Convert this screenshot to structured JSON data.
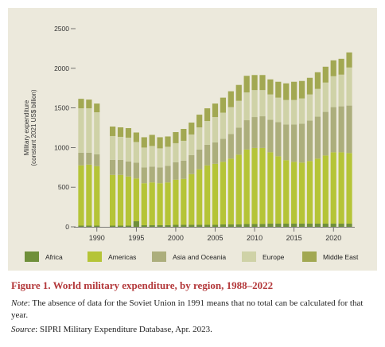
{
  "figure": {
    "label": "Figure 1.",
    "title": "World military expenditure, by region, 1988–2022",
    "note_lead": "Note",
    "note_text": ": The absence of data for the Soviet Union in 1991 means that no total can be calculated for that year.",
    "source_lead": "Source",
    "source_text": ": SIPRI Military Expenditure Database, Apr. 2023."
  },
  "chart_data": {
    "type": "bar",
    "stacked": true,
    "ylabel": [
      "Military expenditure",
      "(constant 2021 US$ billion)"
    ],
    "xlabel": "",
    "ylim": [
      0,
      2500
    ],
    "yticks": [
      0,
      500,
      1000,
      1500,
      2000,
      2500
    ],
    "xticks": [
      1990,
      1995,
      2000,
      2005,
      2010,
      2015,
      2020
    ],
    "grid": false,
    "legend": "bottom",
    "colors": {
      "Africa": "#6f8f3a",
      "Americas": "#b5c437",
      "Asia and Oceania": "#acae7c",
      "Europe": "#cfd2a7",
      "Middle East": "#a2a852"
    },
    "series_order": [
      "Africa",
      "Americas",
      "Asia and Oceania",
      "Europe",
      "Middle East"
    ],
    "years": [
      1988,
      1989,
      1990,
      1991,
      1992,
      1993,
      1994,
      1995,
      1996,
      1997,
      1998,
      1999,
      2000,
      2001,
      2002,
      2003,
      2004,
      2005,
      2006,
      2007,
      2008,
      2009,
      2010,
      2011,
      2012,
      2013,
      2014,
      2015,
      2016,
      2017,
      2018,
      2019,
      2020,
      2021,
      2022
    ],
    "series": [
      {
        "name": "Africa",
        "values": [
          15,
          15,
          15,
          null,
          15,
          15,
          15,
          70,
          20,
          20,
          20,
          20,
          25,
          25,
          25,
          25,
          25,
          25,
          30,
          30,
          30,
          35,
          35,
          35,
          40,
          40,
          40,
          40,
          40,
          40,
          40,
          40,
          40,
          40,
          40
        ]
      },
      {
        "name": "Americas",
        "values": [
          760,
          770,
          750,
          null,
          640,
          640,
          620,
          540,
          530,
          540,
          530,
          540,
          570,
          580,
          640,
          700,
          750,
          770,
          790,
          830,
          880,
          940,
          960,
          960,
          900,
          850,
          800,
          780,
          770,
          790,
          820,
          860,
          900,
          900,
          890
        ]
      },
      {
        "name": "Asia and Oceania",
        "values": [
          160,
          150,
          150,
          null,
          190,
          190,
          190,
          200,
          200,
          200,
          200,
          210,
          220,
          230,
          240,
          250,
          260,
          270,
          290,
          310,
          340,
          370,
          390,
          400,
          410,
          430,
          450,
          470,
          490,
          510,
          530,
          550,
          570,
          580,
          600
        ]
      },
      {
        "name": "Europe",
        "values": [
          560,
          560,
          530,
          null,
          300,
          290,
          300,
          260,
          250,
          260,
          240,
          240,
          240,
          250,
          260,
          280,
          300,
          320,
          330,
          340,
          340,
          350,
          340,
          330,
          320,
          310,
          310,
          310,
          320,
          330,
          350,
          370,
          390,
          400,
          480
        ]
      },
      {
        "name": "Middle East",
        "values": [
          120,
          110,
          110,
          null,
          120,
          120,
          120,
          120,
          130,
          140,
          140,
          130,
          140,
          150,
          150,
          160,
          160,
          170,
          190,
          200,
          200,
          210,
          190,
          190,
          190,
          200,
          210,
          230,
          220,
          210,
          210,
          200,
          200,
          200,
          190
        ]
      }
    ]
  }
}
